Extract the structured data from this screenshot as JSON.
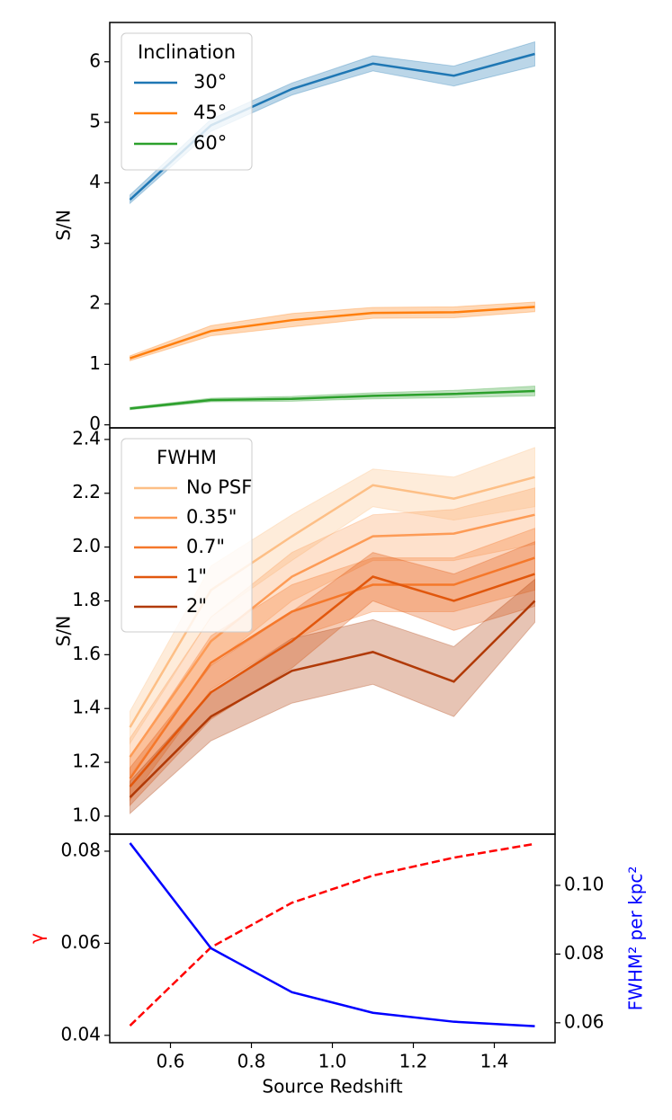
{
  "chart_data": [
    {
      "type": "line",
      "ylabel": "S/N",
      "legend_title": "Inclination",
      "legend": "upper left",
      "x": [
        0.5,
        0.7,
        0.9,
        1.1,
        1.3,
        1.5
      ],
      "xlim": [
        0.45,
        1.55
      ],
      "ylim": [
        -0.05,
        6.65
      ],
      "yticks": [
        0,
        1,
        2,
        3,
        4,
        5,
        6
      ],
      "series": [
        {
          "name": "30°",
          "color": "#1f77b4",
          "values": [
            3.72,
            4.95,
            5.55,
            5.97,
            5.77,
            6.13
          ],
          "lower": [
            3.66,
            4.85,
            5.45,
            5.85,
            5.6,
            5.93
          ],
          "upper": [
            3.8,
            5.05,
            5.65,
            6.1,
            5.93,
            6.33
          ]
        },
        {
          "name": "45°",
          "color": "#ff7f0e",
          "values": [
            1.1,
            1.55,
            1.73,
            1.85,
            1.86,
            1.95
          ],
          "lower": [
            1.06,
            1.47,
            1.62,
            1.76,
            1.77,
            1.87
          ],
          "upper": [
            1.14,
            1.64,
            1.84,
            1.94,
            1.95,
            2.03
          ]
        },
        {
          "name": "60°",
          "color": "#2ca02c",
          "values": [
            0.27,
            0.41,
            0.43,
            0.48,
            0.51,
            0.56
          ],
          "lower": [
            0.25,
            0.38,
            0.39,
            0.43,
            0.45,
            0.48
          ],
          "upper": [
            0.29,
            0.44,
            0.47,
            0.53,
            0.57,
            0.64
          ]
        }
      ]
    },
    {
      "type": "line",
      "ylabel": "S/N",
      "legend_title": "FWHM",
      "legend": "upper left",
      "x": [
        0.5,
        0.7,
        0.9,
        1.1,
        1.3,
        1.5
      ],
      "xlim": [
        0.45,
        1.55
      ],
      "ylim": [
        0.933,
        2.443
      ],
      "yticks": [
        {
          "value": 1.0,
          "label": "1.0"
        },
        1.2,
        1.4,
        1.6,
        1.8,
        {
          "value": 2.0,
          "label": "2.0"
        },
        2.2,
        2.4
      ],
      "series": [
        {
          "name": "No PSF",
          "color": "#fdbf86",
          "values": [
            1.33,
            1.84,
            2.04,
            2.23,
            2.18,
            2.26
          ],
          "lower": [
            1.27,
            1.74,
            1.95,
            2.15,
            2.1,
            2.15
          ],
          "upper": [
            1.39,
            1.93,
            2.12,
            2.29,
            2.26,
            2.37
          ]
        },
        {
          "name": "0.35\"",
          "color": "#fd9b56",
          "values": [
            1.22,
            1.65,
            1.89,
            2.04,
            2.05,
            2.12
          ],
          "lower": [
            1.15,
            1.56,
            1.8,
            1.95,
            1.95,
            2.01
          ],
          "upper": [
            1.29,
            1.74,
            1.98,
            2.12,
            2.14,
            2.22
          ]
        },
        {
          "name": "0.7\"",
          "color": "#f5782b",
          "values": [
            1.14,
            1.57,
            1.76,
            1.86,
            1.86,
            1.96
          ],
          "lower": [
            1.06,
            1.47,
            1.66,
            1.76,
            1.76,
            1.84
          ],
          "upper": [
            1.22,
            1.67,
            1.86,
            1.96,
            1.96,
            2.07
          ]
        },
        {
          "name": "1\"",
          "color": "#e1570d",
          "values": [
            1.11,
            1.46,
            1.65,
            1.89,
            1.8,
            1.9
          ],
          "lower": [
            1.04,
            1.36,
            1.55,
            1.8,
            1.69,
            1.78
          ],
          "upper": [
            1.18,
            1.56,
            1.76,
            1.98,
            1.9,
            2.02
          ]
        },
        {
          "name": "2\"",
          "color": "#b13a07",
          "values": [
            1.07,
            1.37,
            1.54,
            1.61,
            1.5,
            1.8
          ],
          "lower": [
            1.01,
            1.28,
            1.42,
            1.49,
            1.37,
            1.72
          ],
          "upper": [
            1.13,
            1.46,
            1.66,
            1.73,
            1.63,
            1.88
          ]
        }
      ]
    },
    {
      "type": "line",
      "ylabel": "γ",
      "ylabel_color": "#ff0000",
      "y2label": "FWHM² per kpc²",
      "y2label_color": "#0000ff",
      "xlabel": "Source Redshift",
      "x": [
        0.5,
        0.7,
        0.9,
        1.1,
        1.3,
        1.5
      ],
      "xlim": [
        0.45,
        1.55
      ],
      "xticks": [
        0.6,
        0.8,
        {
          "value": 1.0,
          "label": "1.0"
        },
        1.2,
        1.4
      ],
      "ylim": [
        0.0384,
        0.0837
      ],
      "yticks": [
        0.04,
        0.06,
        0.08
      ],
      "y2lim": [
        0.0542,
        0.1149
      ],
      "y2ticks": [
        0.06,
        0.08,
        {
          "value": 0.1,
          "label": "0.10"
        }
      ],
      "series": [
        {
          "color": "#ff0000",
          "dashed": true,
          "values": [
            0.0421,
            0.0591,
            0.0688,
            0.0747,
            0.0786,
            0.0816
          ]
        },
        {
          "color": "#0000ff",
          "axis": "y2",
          "values": [
            0.1123,
            0.0817,
            0.0689,
            0.0629,
            0.0603,
            0.059
          ]
        }
      ]
    }
  ]
}
